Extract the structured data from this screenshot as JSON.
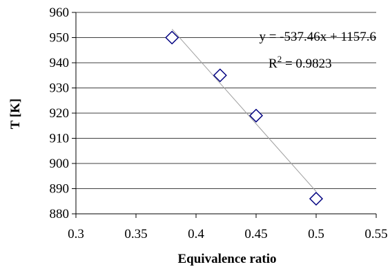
{
  "chart_data": {
    "type": "scatter",
    "title": "",
    "xlabel": "Equivalence ratio",
    "ylabel": "T [K]",
    "xlim": [
      0.3,
      0.55
    ],
    "ylim": [
      880,
      960
    ],
    "xticks": [
      0.3,
      0.35,
      0.4,
      0.45,
      0.5,
      0.55
    ],
    "xtick_labels": [
      "0.3",
      "0.35",
      "0.4",
      "0.45",
      "0.5",
      "0.55"
    ],
    "yticks": [
      880,
      890,
      900,
      910,
      920,
      930,
      940,
      950,
      960
    ],
    "ytick_labels": [
      "880",
      "890",
      "900",
      "910",
      "920",
      "930",
      "940",
      "950",
      "960"
    ],
    "grid": "horizontal",
    "legend": "none",
    "series": [
      {
        "marker": "diamond-open",
        "color": "#000080",
        "x": [
          0.38,
          0.42,
          0.45,
          0.5
        ],
        "y": [
          950,
          935,
          919,
          886
        ]
      }
    ],
    "trendline": {
      "type": "linear",
      "slope": -537.46,
      "intercept": 1157.6,
      "x_range": [
        0.38,
        0.5
      ],
      "color": "#a0a0a0"
    },
    "annotations": {
      "equation": "y = -537.46x + 1157.6",
      "r2_prefix": "R",
      "r2_sup": "2",
      "r2_value": " = 0.9823"
    },
    "colors": {
      "axis": "#000000",
      "grid": "#000000",
      "marker": "#000080",
      "trendline": "#a0a0a0"
    }
  }
}
